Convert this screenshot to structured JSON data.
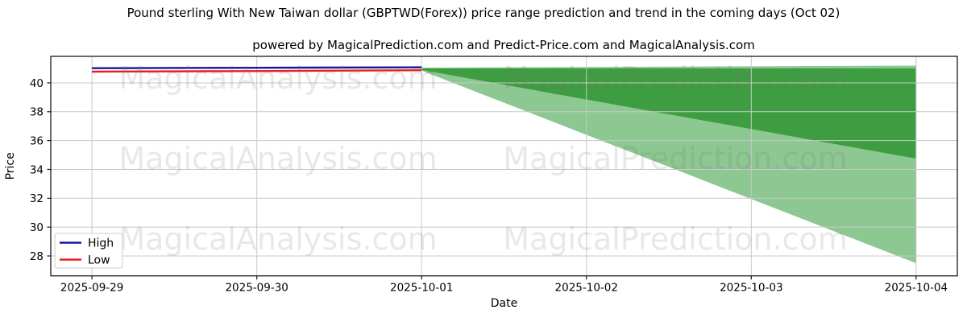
{
  "title": "Pound sterling With New Taiwan dollar (GBPTWD(Forex)) price range prediction and trend in the coming days (Oct 02)",
  "subtitle": "powered by MagicalPrediction.com and Predict-Price.com and MagicalAnalysis.com",
  "watermarks": {
    "left_text": "MagicalAnalysis.com",
    "right_text": "MagicalPrediction.com"
  },
  "chart_data": {
    "type": "line",
    "title": "Pound sterling With New Taiwan dollar (GBPTWD(Forex)) price range prediction and trend in the coming days (Oct 02)",
    "xlabel": "Date",
    "ylabel": "Price",
    "x_categories": [
      "2025-09-29",
      "2025-09-30",
      "2025-10-01",
      "2025-10-02",
      "2025-10-03",
      "2025-10-04"
    ],
    "y_ticks": [
      28,
      30,
      32,
      34,
      36,
      38,
      40
    ],
    "ylim": [
      26.62,
      41.84
    ],
    "grid": true,
    "legend_position": "lower left",
    "legend": [
      {
        "label": "High",
        "color": "#16169e"
      },
      {
        "label": "Low",
        "color": "#e81c1c"
      }
    ],
    "series": [
      {
        "name": "High",
        "color": "#16169e",
        "x": [
          0,
          1,
          2
        ],
        "values": [
          41.02,
          41.05,
          41.08
        ]
      },
      {
        "name": "Low",
        "color": "#e81c1c",
        "x": [
          0,
          1,
          2
        ],
        "values": [
          40.78,
          40.82,
          40.88
        ]
      }
    ],
    "bands": [
      {
        "name": "prediction-range-wide",
        "color": "#8dc791",
        "x": [
          2,
          3,
          4,
          5
        ],
        "top": [
          41.05,
          41.1,
          41.15,
          41.2
        ],
        "bottom": [
          40.85,
          36.4,
          31.95,
          27.5
        ]
      },
      {
        "name": "prediction-range-narrow",
        "color": "#3e9d41",
        "x": [
          2,
          3,
          4,
          5
        ],
        "top": [
          41.0,
          41.0,
          41.0,
          41.0
        ],
        "bottom": [
          40.9,
          38.85,
          36.8,
          34.75
        ]
      }
    ],
    "colors": {
      "grid": "#c9c9c9",
      "spine": "#1a1a1a",
      "watermark": "#6e6e6e"
    }
  }
}
